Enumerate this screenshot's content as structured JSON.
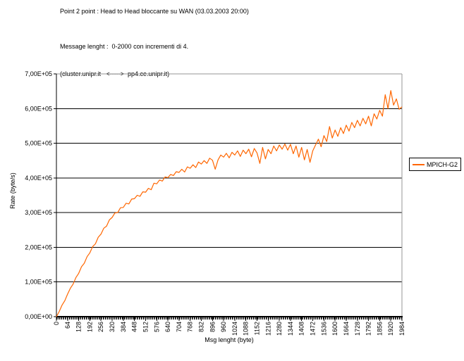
{
  "header": {
    "title": "Point 2 point : Head to Head bloccante su WAN (03.03.2003 20:00)",
    "subtitle_line1": "Message lenght :  0-2000 con incrementi di 4.",
    "subtitle_line2": "(cluster.unipr.it   <----->  pp4.ce.unipr.it)"
  },
  "colors": {
    "background": "#FFFFFF",
    "gridline": "#000000",
    "axis": "#000000",
    "plot_border": "#969696",
    "text": "#000000",
    "series_orange": "#FF6600"
  },
  "chart_data": {
    "type": "line",
    "title": "",
    "xlabel": "Msg lenght (byte)",
    "ylabel": "Rate (byte/s)",
    "xlim": [
      0,
      1984
    ],
    "ylim": [
      0,
      700000
    ],
    "x_tick_step": 64,
    "y_tick_step": 100000,
    "x_tick_labels": [
      "0",
      "64",
      "128",
      "192",
      "256",
      "320",
      "384",
      "448",
      "512",
      "576",
      "640",
      "704",
      "768",
      "832",
      "896",
      "960",
      "1024",
      "1088",
      "1152",
      "1216",
      "1280",
      "1344",
      "1408",
      "1472",
      "1536",
      "1600",
      "1664",
      "1728",
      "1792",
      "1856",
      "1920",
      "1984"
    ],
    "y_tick_labels": [
      "0,00E+00",
      "1,00E+05",
      "2,00E+05",
      "3,00E+05",
      "4,00E+05",
      "5,00E+05",
      "6,00E+05",
      "7,00E+05"
    ],
    "grid": "horizontal",
    "legend_position": "right",
    "series": [
      {
        "name": "MPICH-G2",
        "color": "#FF6600",
        "x_start": 0,
        "x_step": 16,
        "values": [
          0,
          15000,
          33000,
          46000,
          65000,
          82000,
          94000,
          113000,
          125000,
          144000,
          154000,
          173000,
          184000,
          202000,
          210000,
          229000,
          238000,
          255000,
          261000,
          279000,
          286000,
          299000,
          300000,
          314000,
          315000,
          327000,
          325000,
          339000,
          340000,
          350000,
          347000,
          360000,
          359000,
          370000,
          366000,
          385000,
          383000,
          394000,
          391000,
          403000,
          401000,
          410000,
          407000,
          418000,
          416000,
          425000,
          417000,
          432000,
          428000,
          438000,
          430000,
          446000,
          440000,
          450000,
          442000,
          457000,
          451000,
          425000,
          452000,
          466000,
          460000,
          471000,
          458000,
          474000,
          466000,
          478000,
          462000,
          480000,
          470000,
          483000,
          461000,
          485000,
          472000,
          442000,
          488000,
          455000,
          482000,
          470000,
          492000,
          478000,
          495000,
          483000,
          498000,
          480000,
          497000,
          470000,
          492000,
          460000,
          488000,
          452000,
          482000,
          445000,
          478000,
          495000,
          512000,
          490000,
          522000,
          505000,
          548000,
          515000,
          538000,
          520000,
          545000,
          528000,
          552000,
          535000,
          560000,
          545000,
          566000,
          550000,
          572000,
          556000,
          578000,
          550000,
          585000,
          570000,
          595000,
          578000,
          640000,
          600000,
          652000,
          610000,
          628000,
          598000,
          605000
        ]
      }
    ]
  }
}
